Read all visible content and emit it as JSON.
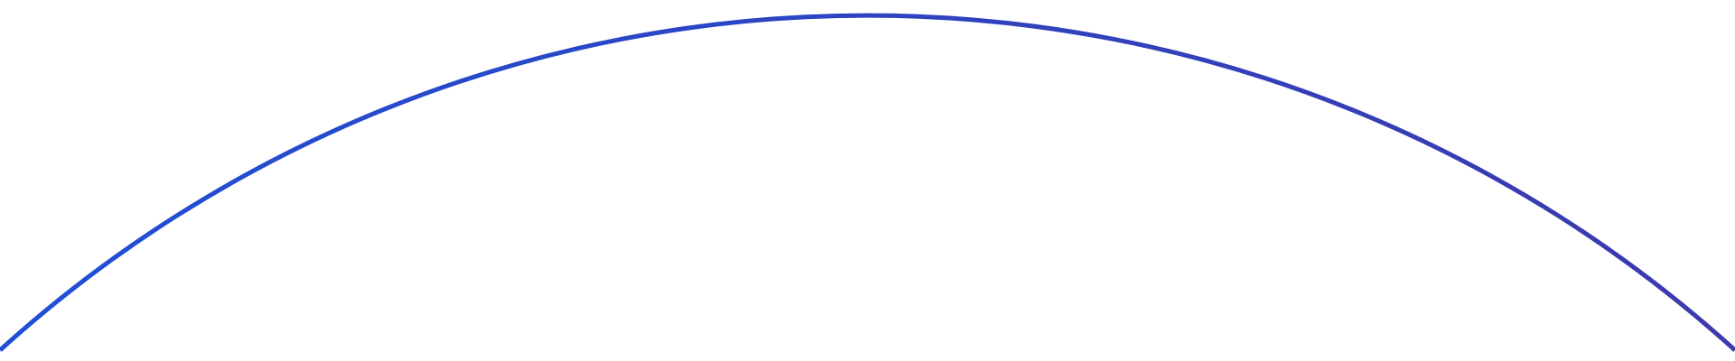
{
  "arc": {
    "color_start": "#1f4fd6",
    "color_end": "#3c39ad"
  }
}
